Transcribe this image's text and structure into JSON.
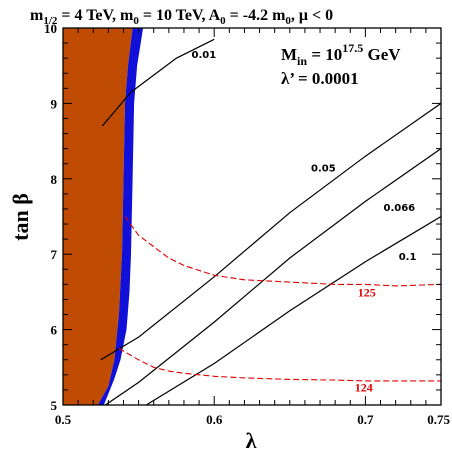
{
  "chart_data": {
    "type": "line",
    "title": {
      "m_half": "m",
      "m_half_sub": "1/2",
      "m_half_val": " = 4 TeV, m",
      "m0_sub": "0",
      "m0_val": " = 10 TeV, A",
      "A0_sub": "0",
      "A0_val": " = -4.2 m",
      "A0m0_sub": "0",
      "mu_part": ", μ < 0"
    },
    "inset": {
      "min_base": "M",
      "min_sub": "in",
      "min_eq": " = 10",
      "min_exp": "17.5",
      "min_unit": " GeV",
      "lambda_prime": "λ’ = 0.0001"
    },
    "xlabel": "λ",
    "ylabel": "tan β",
    "xlim": [
      0.5,
      0.75
    ],
    "ylim": [
      5,
      10
    ],
    "xticks": [
      "0.5",
      "0.6",
      "0.7",
      "0.75"
    ],
    "yticks": [
      "5",
      "6",
      "7",
      "8",
      "9",
      "10"
    ],
    "regions": [
      {
        "name": "excluded-brown",
        "color": "#c04c04",
        "boundary": [
          [
            0.5,
            10
          ],
          [
            0.546,
            10
          ],
          [
            0.543,
            9.5
          ],
          [
            0.541,
            9.0
          ],
          [
            0.54,
            8.0
          ],
          [
            0.539,
            7.0
          ],
          [
            0.537,
            6.2
          ],
          [
            0.534,
            5.6
          ],
          [
            0.53,
            5.25
          ],
          [
            0.523,
            5.0
          ],
          [
            0.5,
            5.0
          ]
        ]
      },
      {
        "name": "excluded-blue",
        "color": "#1010d8",
        "boundary": [
          [
            0.546,
            10
          ],
          [
            0.553,
            10
          ],
          [
            0.549,
            9.5
          ],
          [
            0.547,
            9.0
          ],
          [
            0.546,
            8.0
          ],
          [
            0.545,
            7.0
          ],
          [
            0.544,
            6.5
          ],
          [
            0.542,
            6.0
          ],
          [
            0.538,
            5.6
          ],
          [
            0.534,
            5.35
          ],
          [
            0.53,
            5.15
          ],
          [
            0.527,
            5.0
          ],
          [
            0.523,
            5.0
          ],
          [
            0.53,
            5.25
          ],
          [
            0.534,
            5.6
          ],
          [
            0.537,
            6.2
          ],
          [
            0.539,
            7.0
          ],
          [
            0.54,
            8.0
          ],
          [
            0.541,
            9.0
          ],
          [
            0.543,
            9.5
          ]
        ]
      }
    ],
    "series": [
      {
        "label": "0.01",
        "color": "#000000",
        "x": [
          0.526,
          0.545,
          0.575,
          0.6
        ],
        "y": [
          8.7,
          9.15,
          9.6,
          9.85
        ]
      },
      {
        "label": "0.05",
        "color": "#000000",
        "x": [
          0.525,
          0.55,
          0.6,
          0.65,
          0.7,
          0.75
        ],
        "y": [
          5.6,
          5.9,
          6.7,
          7.55,
          8.3,
          9.0
        ]
      },
      {
        "label": "0.066",
        "color": "#000000",
        "x": [
          0.528,
          0.55,
          0.6,
          0.65,
          0.7,
          0.75
        ],
        "y": [
          5.0,
          5.3,
          6.1,
          6.95,
          7.7,
          8.4
        ]
      },
      {
        "label": "0.1",
        "color": "#000000",
        "x": [
          0.555,
          0.6,
          0.65,
          0.7,
          0.75
        ],
        "y": [
          5.0,
          5.55,
          6.25,
          6.9,
          7.5
        ]
      },
      {
        "label": "125",
        "color": "#e00000",
        "dashed": true,
        "x": [
          0.541,
          0.55,
          0.56,
          0.57,
          0.58,
          0.6,
          0.62,
          0.65,
          0.68,
          0.7,
          0.72,
          0.75
        ],
        "y": [
          7.5,
          7.25,
          7.1,
          6.95,
          6.85,
          6.72,
          6.66,
          6.63,
          6.6,
          6.6,
          6.58,
          6.6
        ]
      },
      {
        "label": "124",
        "color": "#e00000",
        "dashed": true,
        "x": [
          0.537,
          0.55,
          0.56,
          0.57,
          0.58,
          0.6,
          0.62,
          0.65,
          0.68,
          0.7,
          0.72,
          0.75
        ],
        "y": [
          5.75,
          5.6,
          5.5,
          5.45,
          5.42,
          5.38,
          5.36,
          5.34,
          5.33,
          5.32,
          5.32,
          5.32
        ]
      }
    ],
    "contour_labels": [
      {
        "text": "0.01",
        "x": 0.585,
        "y": 9.6
      },
      {
        "text": "0.05",
        "x": 0.664,
        "y": 8.1
      },
      {
        "text": "0.066",
        "x": 0.712,
        "y": 7.57
      },
      {
        "text": "0.1",
        "x": 0.722,
        "y": 6.92
      },
      {
        "text": "125",
        "x": 0.695,
        "y": 6.44,
        "red": true
      },
      {
        "text": "124",
        "x": 0.693,
        "y": 5.18,
        "red": true
      }
    ],
    "grid": false,
    "legend": "none"
  }
}
